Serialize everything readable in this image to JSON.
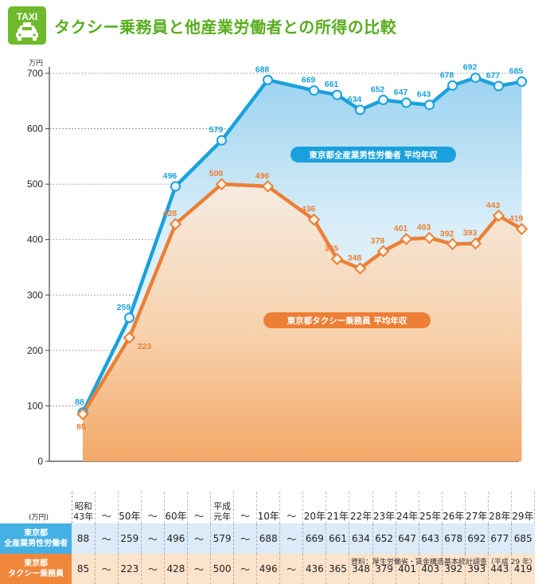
{
  "badge": {
    "text": "TAXI"
  },
  "title": "タクシー乗務員と他産業労働者との所得の比較",
  "table": {
    "unit": "(万円)",
    "row_all_label": "東京都\n全産業男性労働者",
    "row_taxi_label": "東京都\nタクシー乗務員",
    "columns": [
      {
        "label": "昭和\n43年",
        "all": "88",
        "taxi": "85"
      },
      {
        "label": "～",
        "all": "～",
        "taxi": "～"
      },
      {
        "label": "50年",
        "all": "259",
        "taxi": "223"
      },
      {
        "label": "～",
        "all": "～",
        "taxi": "～"
      },
      {
        "label": "60年",
        "all": "496",
        "taxi": "428"
      },
      {
        "label": "～",
        "all": "～",
        "taxi": "～"
      },
      {
        "label": "平成\n元年",
        "all": "579",
        "taxi": "500"
      },
      {
        "label": "～",
        "all": "～",
        "taxi": "～"
      },
      {
        "label": "10年",
        "all": "688",
        "taxi": "496"
      },
      {
        "label": "～",
        "all": "～",
        "taxi": "～"
      },
      {
        "label": "20年",
        "all": "669",
        "taxi": "436"
      },
      {
        "label": "21年",
        "all": "661",
        "taxi": "365"
      },
      {
        "label": "22年",
        "all": "634",
        "taxi": "348"
      },
      {
        "label": "23年",
        "all": "652",
        "taxi": "379"
      },
      {
        "label": "24年",
        "all": "647",
        "taxi": "401"
      },
      {
        "label": "25年",
        "all": "643",
        "taxi": "403"
      },
      {
        "label": "26年",
        "all": "678",
        "taxi": "392"
      },
      {
        "label": "27年",
        "all": "692",
        "taxi": "393"
      },
      {
        "label": "28年",
        "all": "677",
        "taxi": "443"
      },
      {
        "label": "29年",
        "all": "685",
        "taxi": "419"
      }
    ]
  },
  "source": "資料：厚生労働省・賃金構造基本統計調査（平成 29 年）",
  "colors": {
    "all_line": "#1aa1dd",
    "taxi_line": "#ec7f35",
    "title": "#58ad1e",
    "badge": "#6fba2c"
  },
  "chart_data": {
    "type": "line",
    "title": "タクシー乗務員と他産業労働者との所得の比較",
    "ylabel": "万円",
    "ylim": [
      0,
      700
    ],
    "yticks": [
      0,
      100,
      200,
      300,
      400,
      500,
      600,
      700
    ],
    "categories": [
      "昭和43年",
      "50年",
      "60年",
      "平成元年",
      "10年",
      "20年",
      "21年",
      "22年",
      "23年",
      "24年",
      "25年",
      "26年",
      "27年",
      "28年",
      "29年"
    ],
    "series": [
      {
        "name": "東京都全産業男性労働者 平均年収",
        "values": [
          88,
          259,
          496,
          579,
          688,
          669,
          661,
          634,
          652,
          647,
          643,
          678,
          692,
          677,
          685
        ]
      },
      {
        "name": "東京都タクシー乗務員 平均年収",
        "values": [
          85,
          223,
          428,
          500,
          496,
          436,
          365,
          348,
          379,
          401,
          403,
          392,
          393,
          443,
          419
        ]
      }
    ]
  }
}
